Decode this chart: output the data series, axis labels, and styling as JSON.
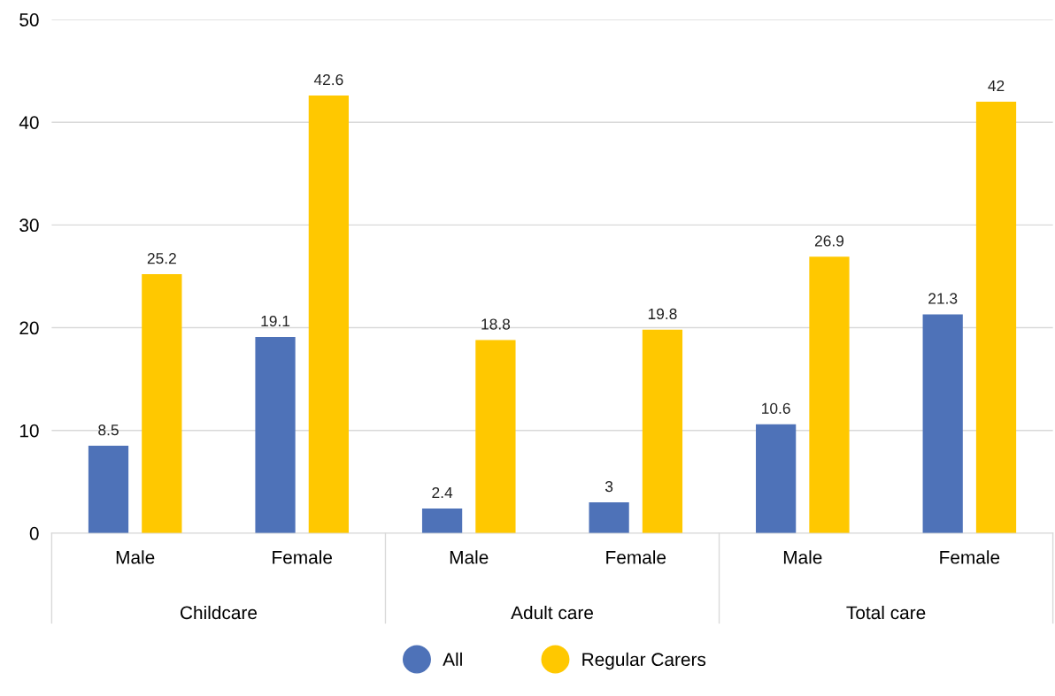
{
  "chart_data": {
    "type": "bar",
    "categories": [
      "Male",
      "Female",
      "Male",
      "Female",
      "Male",
      "Female"
    ],
    "series": [
      {
        "name": "All",
        "color": "#4e72b8",
        "values": [
          8.5,
          19.1,
          2.4,
          3,
          10.6,
          21.3
        ]
      },
      {
        "name": "Regular Carers",
        "color": "#ffc800",
        "values": [
          25.2,
          42.6,
          18.8,
          19.8,
          26.9,
          42
        ]
      }
    ],
    "annotations": [
      "Childcare",
      "Adult care",
      "Total care"
    ],
    "ylim": [
      0,
      50
    ],
    "yticks": [
      0,
      10,
      20,
      30,
      40,
      50
    ],
    "grid": "y",
    "legend": "bottom",
    "data_labels": true,
    "marker": "circle"
  }
}
